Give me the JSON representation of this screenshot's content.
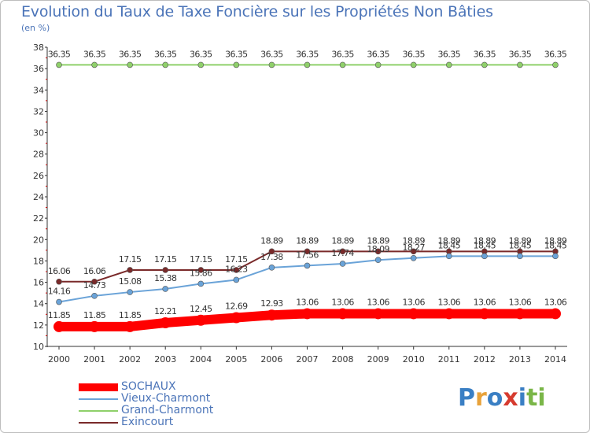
{
  "title": "Evolution du Taux de Taxe Foncière sur les Propriétés Non Bâties",
  "subtitle": "(en %)",
  "logo": {
    "text": "Proxiti",
    "colors": [
      "#3a7fc4",
      "#e8a23a",
      "#3a7fc4",
      "#d63b2f",
      "#3a7fc4",
      "#7ab648",
      "#7ab648"
    ]
  },
  "chart_data": {
    "type": "line",
    "x": [
      "2000",
      "2001",
      "2002",
      "2003",
      "2004",
      "2005",
      "2006",
      "2007",
      "2008",
      "2009",
      "2010",
      "2011",
      "2012",
      "2013",
      "2014"
    ],
    "ylim": [
      10,
      38
    ],
    "yticks": [
      "10",
      "12",
      "14",
      "16",
      "18",
      "20",
      "22",
      "24",
      "26",
      "28",
      "30",
      "32",
      "34",
      "36",
      "38"
    ],
    "grid": false,
    "series": [
      {
        "name": "SOCHAUX",
        "color": "#ff0000",
        "width": 12,
        "values": [
          11.85,
          11.85,
          11.85,
          12.21,
          12.45,
          12.69,
          12.93,
          13.06,
          13.06,
          13.06,
          13.06,
          13.06,
          13.06,
          13.06,
          13.06
        ],
        "labels": [
          "11.85",
          "11.85",
          "11.85",
          "12.21",
          "12.45",
          "12.69",
          "12.93",
          "13.06",
          "13.06",
          "13.06",
          "13.06",
          "13.06",
          "13.06",
          "13.06",
          "13.06"
        ]
      },
      {
        "name": "Vieux-Charmont",
        "color": "#6aa3d8",
        "width": 2,
        "values": [
          14.16,
          14.73,
          15.08,
          15.38,
          15.86,
          16.23,
          17.38,
          17.56,
          17.74,
          18.09,
          18.27,
          18.45,
          18.45,
          18.45,
          18.45
        ],
        "labels": [
          "14.16",
          "14.73",
          "15.08",
          "15.38",
          "15.86",
          "16.23",
          "17.38",
          "17.56",
          "17.74",
          "18.09",
          "18.27",
          "18.45",
          "18.45",
          "18.45",
          "18.45"
        ]
      },
      {
        "name": "Grand-Charmont",
        "color": "#8fd06a",
        "width": 2,
        "values": [
          36.35,
          36.35,
          36.35,
          36.35,
          36.35,
          36.35,
          36.35,
          36.35,
          36.35,
          36.35,
          36.35,
          36.35,
          36.35,
          36.35,
          36.35
        ],
        "labels": [
          "36.35",
          "36.35",
          "36.35",
          "36.35",
          "36.35",
          "36.35",
          "36.35",
          "36.35",
          "36.35",
          "36.35",
          "36.35",
          "36.35",
          "36.35",
          "36.35",
          "36.35"
        ]
      },
      {
        "name": "Exincourt",
        "color": "#7a2a2a",
        "width": 2,
        "values": [
          16.06,
          16.06,
          17.15,
          17.15,
          17.15,
          17.15,
          18.89,
          18.89,
          18.89,
          18.89,
          18.89,
          18.89,
          18.89,
          18.89,
          18.89
        ],
        "labels": [
          "16.06",
          "16.06",
          "17.15",
          "17.15",
          "17.15",
          "17.15",
          "18.89",
          "18.89",
          "18.89",
          "18.89",
          "18.89",
          "18.89",
          "18.89",
          "18.89",
          "18.89"
        ]
      }
    ]
  }
}
